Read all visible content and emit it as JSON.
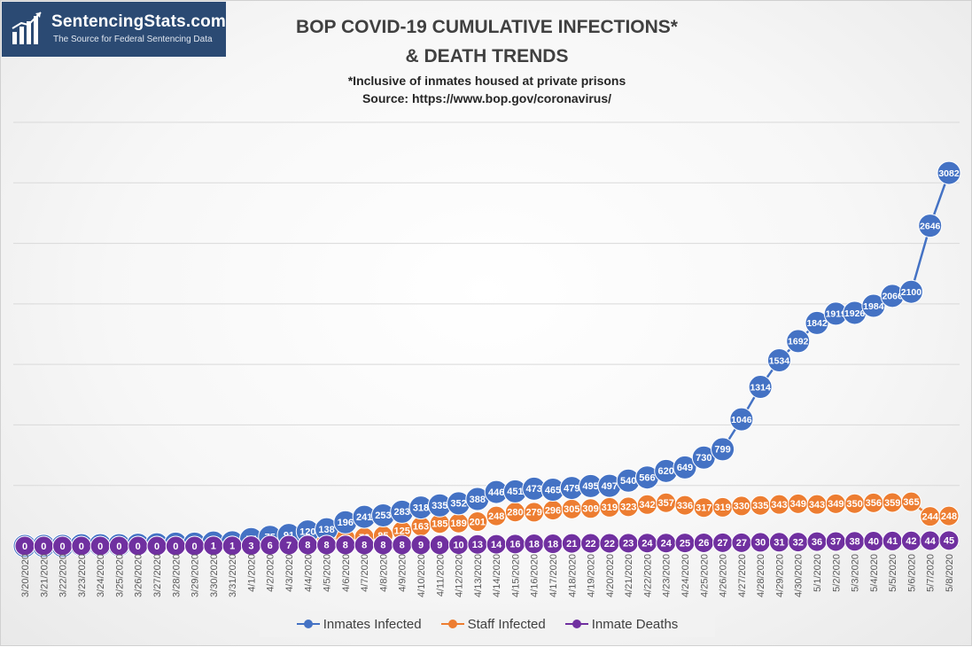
{
  "logo": {
    "brand": "SentencingStats.com",
    "tagline": "The Source for Federal Sentencing Data"
  },
  "title": {
    "line1": "BOP COVID-19 CUMULATIVE INFECTIONS*",
    "line2": "& DEATH TRENDS",
    "subtitle1": "*Inclusive of inmates housed at private prisons",
    "subtitle2": "Source: https://www.bop.gov/coronavirus/"
  },
  "colors": {
    "inmates": "#4472c4",
    "staff": "#ed7d31",
    "deaths": "#7030a0",
    "gridline": "#d9d9d9",
    "axis_text": "#595959"
  },
  "chart_data": {
    "type": "line",
    "x": [
      "3/20/2020",
      "3/21/2020",
      "3/22/2020",
      "3/23/2020",
      "3/24/2020",
      "3/25/2020",
      "3/26/2020",
      "3/27/2020",
      "3/28/2020",
      "3/29/2020",
      "3/30/2020",
      "3/31/2020",
      "4/1/2020",
      "4/2/2020",
      "4/3/2020",
      "4/4/2020",
      "4/5/2020",
      "4/6/2020",
      "4/7/2020",
      "4/8/2020",
      "4/9/2020",
      "4/10/2020",
      "4/11/2020",
      "4/12/2020",
      "4/13/2020",
      "4/14/2020",
      "4/15/2020",
      "4/16/2020",
      "4/17/2020",
      "4/18/2020",
      "4/19/2020",
      "4/20/2020",
      "4/21/2020",
      "4/22/2020",
      "4/23/2020",
      "4/24/2020",
      "4/25/2020",
      "4/26/2020",
      "4/27/2020",
      "4/28/2020",
      "4/29/2020",
      "4/30/2020",
      "5/1/2020",
      "5/2/2020",
      "5/3/2020",
      "5/4/2020",
      "5/5/2020",
      "5/6/2020",
      "5/7/2020",
      "5/8/2020"
    ],
    "series": [
      {
        "name": "Inmates Infected",
        "values": [
          0,
          1,
          1,
          6,
          6,
          6,
          10,
          14,
          19,
          19,
          28,
          30,
          57,
          75,
          91,
          120,
          138,
          196,
          241,
          253,
          283,
          318,
          335,
          352,
          388,
          446,
          451,
          473,
          465,
          479,
          495,
          497,
          540,
          566,
          620,
          649,
          730,
          799,
          1046,
          1314,
          1534,
          1692,
          1842,
          1919,
          1926,
          1984,
          2066,
          2100,
          2646,
          3082
        ]
      },
      {
        "name": "Staff Infected",
        "values": [
          2,
          2,
          2,
          3,
          3,
          3,
          8,
          13,
          19,
          19,
          22,
          30,
          44,
          59,
          60,
          54,
          59,
          63,
          72,
          85,
          125,
          163,
          185,
          189,
          201,
          248,
          280,
          279,
          296,
          305,
          309,
          319,
          323,
          342,
          357,
          336,
          317,
          319,
          330,
          335,
          343,
          349,
          343,
          349,
          350,
          356,
          359,
          365,
          244,
          248
        ]
      },
      {
        "name": "Inmate Deaths",
        "values": [
          0,
          0,
          0,
          0,
          0,
          0,
          0,
          0,
          0,
          0,
          1,
          1,
          3,
          6,
          7,
          8,
          8,
          8,
          8,
          8,
          8,
          9,
          9,
          10,
          13,
          14,
          16,
          18,
          18,
          21,
          22,
          22,
          23,
          24,
          24,
          25,
          26,
          27,
          27,
          30,
          31,
          32,
          36,
          37,
          38,
          40,
          41,
          42,
          44,
          45
        ]
      }
    ],
    "ylim": [
      0,
      3500
    ],
    "grid": true,
    "legend_position": "bottom"
  }
}
